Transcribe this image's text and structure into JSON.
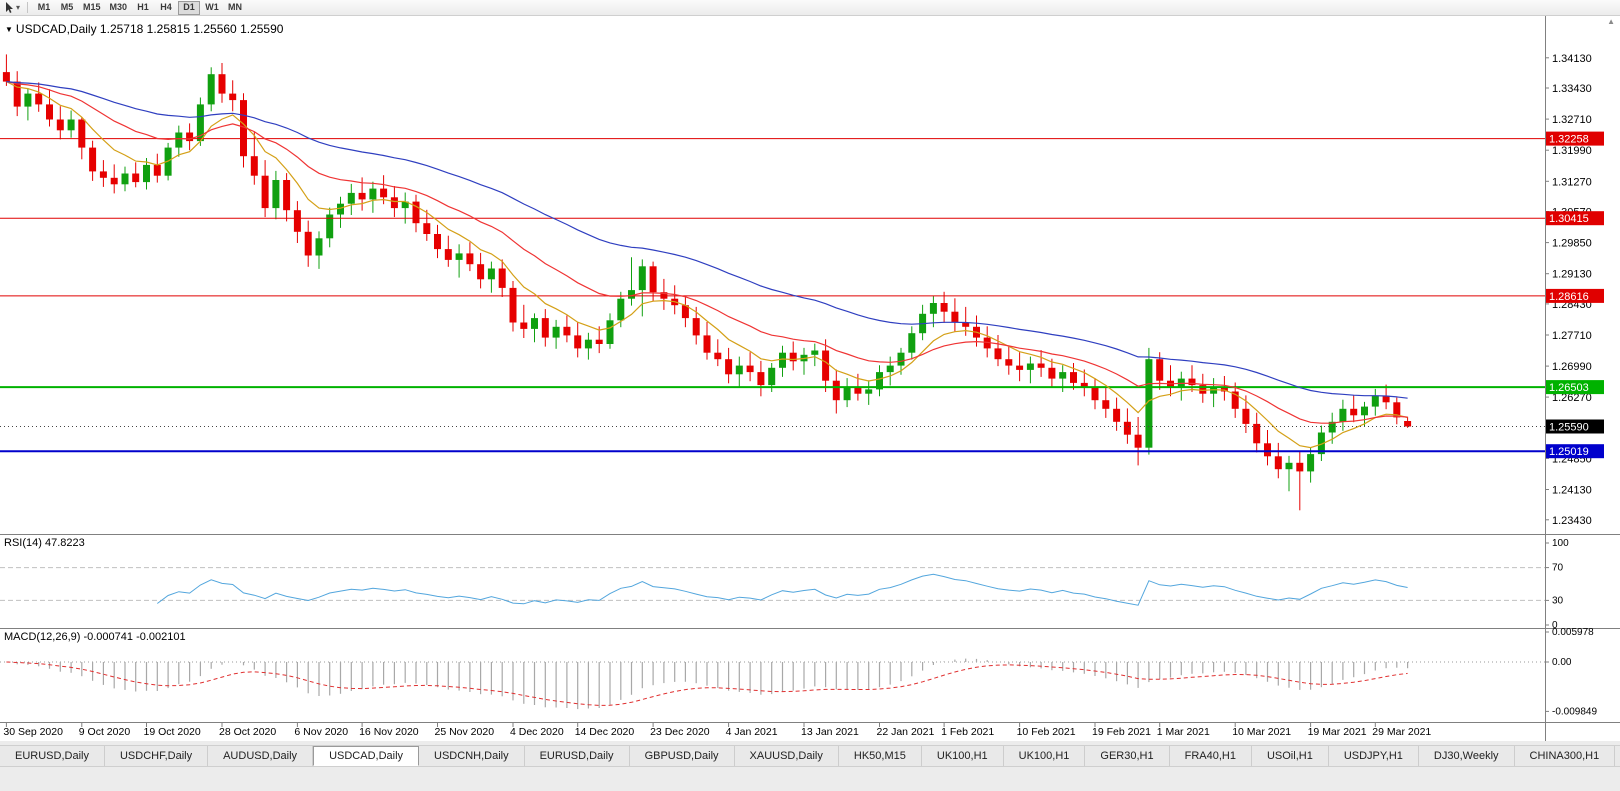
{
  "window": {
    "toolbar": {
      "cursor_tool": "pointer",
      "timeframes": [
        "M1",
        "M5",
        "M15",
        "M30",
        "H1",
        "H4",
        "D1",
        "W1",
        "MN"
      ],
      "active_timeframe": "D1"
    },
    "tabs": [
      {
        "label": "EURUSD,Daily",
        "active": false
      },
      {
        "label": "USDCHF,Daily",
        "active": false
      },
      {
        "label": "AUDUSD,Daily",
        "active": false
      },
      {
        "label": "USDCAD,Daily",
        "active": true
      },
      {
        "label": "USDCNH,Daily",
        "active": false
      },
      {
        "label": "EURUSD,Daily",
        "active": false
      },
      {
        "label": "GBPUSD,Daily",
        "active": false
      },
      {
        "label": "XAUUSD,Daily",
        "active": false
      },
      {
        "label": "HK50,M15",
        "active": false
      },
      {
        "label": "UK100,H1",
        "active": false
      },
      {
        "label": "UK100,H1",
        "active": false
      },
      {
        "label": "GER30,H1",
        "active": false
      },
      {
        "label": "FRA40,H1",
        "active": false
      },
      {
        "label": "USOil,H1",
        "active": false
      },
      {
        "label": "USDJPY,H1",
        "active": false
      },
      {
        "label": "DJ30,Weekly",
        "active": false
      },
      {
        "label": "CHINA300,H1",
        "active": false
      }
    ]
  },
  "chart": {
    "ohlc_line": "USDCAD,Daily 1.25718 1.25815 1.25560 1.25590",
    "open": "1.25718",
    "high": "1.25815",
    "low": "1.25560",
    "close": "1.25590",
    "colors": {
      "bull": "#10a010",
      "bear": "#e60000"
    }
  },
  "chart_data": {
    "type": "candlestick",
    "symbol": "USDCAD",
    "period": "Daily",
    "ylim": [
      1.231,
      1.3489
    ],
    "price_axis": [
      "1.34130",
      "1.33430",
      "1.32710",
      "1.31990",
      "1.31270",
      "1.30570",
      "1.29850",
      "1.29130",
      "1.28430",
      "1.27710",
      "1.26990",
      "1.26270",
      "1.24850",
      "1.24130",
      "1.23430"
    ],
    "current_price": {
      "price": 1.2559,
      "label": "1.25590",
      "color": "#000000"
    },
    "hlines": [
      {
        "price": 1.32258,
        "label": "1.32258",
        "color": "#e00000",
        "lw": 1
      },
      {
        "price": 1.30415,
        "label": "1.30415",
        "color": "#e00000",
        "lw": 1
      },
      {
        "price": 1.28616,
        "label": "1.28616",
        "color": "#e00000",
        "lw": 1
      },
      {
        "price": 1.26503,
        "label": "1.26503",
        "color": "#00b200",
        "lw": 2
      },
      {
        "price": 1.25019,
        "label": "1.25019",
        "color": "#0000cc",
        "lw": 2
      }
    ],
    "date_ticks": [
      {
        "i": 0,
        "label": "30 Sep 2020"
      },
      {
        "i": 7,
        "label": "9 Oct 2020"
      },
      {
        "i": 13,
        "label": "19 Oct 2020"
      },
      {
        "i": 20,
        "label": "28 Oct 2020"
      },
      {
        "i": 27,
        "label": "6 Nov 2020"
      },
      {
        "i": 33,
        "label": "16 Nov 2020"
      },
      {
        "i": 40,
        "label": "25 Nov 2020"
      },
      {
        "i": 47,
        "label": "4 Dec 2020"
      },
      {
        "i": 53,
        "label": "14 Dec 2020"
      },
      {
        "i": 60,
        "label": "23 Dec 2020"
      },
      {
        "i": 67,
        "label": "4 Jan 2021"
      },
      {
        "i": 74,
        "label": "13 Jan 2021"
      },
      {
        "i": 81,
        "label": "22 Jan 2021"
      },
      {
        "i": 87,
        "label": "1 Feb 2021"
      },
      {
        "i": 94,
        "label": "10 Feb 2021"
      },
      {
        "i": 101,
        "label": "19 Feb 2021"
      },
      {
        "i": 107,
        "label": "1 Mar 2021"
      },
      {
        "i": 114,
        "label": "10 Mar 2021"
      },
      {
        "i": 121,
        "label": "19 Mar 2021"
      },
      {
        "i": 127,
        "label": "29 Mar 2021"
      }
    ],
    "indicators": {
      "ma": [
        {
          "period": 8,
          "color": "#d4a017"
        },
        {
          "period": 20,
          "color": "#ef3434"
        },
        {
          "period": 45,
          "color": "#2f3fc0"
        }
      ],
      "rsi": {
        "label": "RSI(14)",
        "value": "47.8223",
        "display": "RSI(14) 47.8223",
        "period": 14,
        "levels": [
          100,
          70,
          30,
          0
        ],
        "color": "#53a6dd"
      },
      "macd": {
        "label": "MACD(12,26,9)",
        "main_value": "-0.000741",
        "signal_value": "-0.002101",
        "display": "MACD(12,26,9) -0.000741 -0.002101",
        "fast": 12,
        "slow": 26,
        "signal": 9,
        "axis": [
          "0.005978",
          "0.00",
          "-0.009849"
        ],
        "hist_color": "#a8a8a8",
        "signal_color": "#e03030"
      }
    },
    "candles": [
      [
        1.338,
        1.3421,
        1.3348,
        1.3358
      ],
      [
        1.3358,
        1.3382,
        1.3278,
        1.33
      ],
      [
        1.33,
        1.3341,
        1.3268,
        1.333
      ],
      [
        1.333,
        1.3356,
        1.3288,
        1.3305
      ],
      [
        1.3305,
        1.334,
        1.3254,
        1.327
      ],
      [
        1.327,
        1.3301,
        1.3224,
        1.3245
      ],
      [
        1.3245,
        1.3291,
        1.3228,
        1.327
      ],
      [
        1.327,
        1.3276,
        1.3178,
        1.3205
      ],
      [
        1.3205,
        1.3221,
        1.3128,
        1.315
      ],
      [
        1.315,
        1.3176,
        1.3114,
        1.3135
      ],
      [
        1.3135,
        1.3166,
        1.3099,
        1.312
      ],
      [
        1.312,
        1.3161,
        1.3104,
        1.3145
      ],
      [
        1.3145,
        1.3171,
        1.3113,
        1.3125
      ],
      [
        1.3125,
        1.3181,
        1.3108,
        1.3165
      ],
      [
        1.3165,
        1.3191,
        1.3124,
        1.314
      ],
      [
        1.314,
        1.3216,
        1.3129,
        1.3205
      ],
      [
        1.3205,
        1.3256,
        1.3184,
        1.324
      ],
      [
        1.324,
        1.3261,
        1.3199,
        1.322
      ],
      [
        1.322,
        1.3321,
        1.3209,
        1.3305
      ],
      [
        1.3305,
        1.3391,
        1.3289,
        1.3375
      ],
      [
        1.3375,
        1.3401,
        1.3309,
        1.333
      ],
      [
        1.333,
        1.3361,
        1.3289,
        1.3315
      ],
      [
        1.3315,
        1.3331,
        1.3159,
        1.3185
      ],
      [
        1.3185,
        1.3241,
        1.3119,
        1.314
      ],
      [
        1.314,
        1.3176,
        1.3044,
        1.3065
      ],
      [
        1.3065,
        1.3151,
        1.3039,
        1.313
      ],
      [
        1.313,
        1.3146,
        1.3034,
        1.306
      ],
      [
        1.306,
        1.3081,
        1.2984,
        1.301
      ],
      [
        1.301,
        1.3036,
        1.2929,
        1.2955
      ],
      [
        1.2955,
        1.3011,
        1.2924,
        1.2995
      ],
      [
        1.2995,
        1.3066,
        1.2974,
        1.305
      ],
      [
        1.305,
        1.3091,
        1.3019,
        1.3075
      ],
      [
        1.3075,
        1.3121,
        1.3049,
        1.31
      ],
      [
        1.31,
        1.3136,
        1.3059,
        1.3085
      ],
      [
        1.3085,
        1.3126,
        1.3054,
        1.311
      ],
      [
        1.311,
        1.3141,
        1.3074,
        1.309
      ],
      [
        1.309,
        1.3116,
        1.3044,
        1.3065
      ],
      [
        1.3065,
        1.3101,
        1.3029,
        1.308
      ],
      [
        1.308,
        1.3096,
        1.3009,
        1.303
      ],
      [
        1.303,
        1.3061,
        1.2989,
        1.3005
      ],
      [
        1.3005,
        1.3026,
        1.2949,
        1.297
      ],
      [
        1.297,
        1.3001,
        1.2929,
        1.2945
      ],
      [
        1.2945,
        1.2981,
        1.2904,
        1.296
      ],
      [
        1.296,
        1.2986,
        1.2919,
        1.2935
      ],
      [
        1.2935,
        1.2961,
        1.2879,
        1.29
      ],
      [
        1.29,
        1.2941,
        1.2869,
        1.2925
      ],
      [
        1.2925,
        1.2946,
        1.2859,
        1.288
      ],
      [
        1.288,
        1.2896,
        1.2779,
        1.28
      ],
      [
        1.28,
        1.2841,
        1.2764,
        1.2785
      ],
      [
        1.2785,
        1.2821,
        1.2754,
        1.281
      ],
      [
        1.281,
        1.2831,
        1.2744,
        1.2765
      ],
      [
        1.2765,
        1.2806,
        1.2739,
        1.279
      ],
      [
        1.279,
        1.2816,
        1.2754,
        1.277
      ],
      [
        1.277,
        1.2801,
        1.2719,
        1.274
      ],
      [
        1.274,
        1.2776,
        1.2714,
        1.276
      ],
      [
        1.276,
        1.2791,
        1.2729,
        1.275
      ],
      [
        1.275,
        1.2821,
        1.2739,
        1.2805
      ],
      [
        1.2805,
        1.2871,
        1.2789,
        1.2855
      ],
      [
        1.2855,
        1.2951,
        1.2839,
        1.2875
      ],
      [
        1.2875,
        1.2946,
        1.2814,
        1.293
      ],
      [
        1.293,
        1.2941,
        1.2849,
        1.287
      ],
      [
        1.287,
        1.2901,
        1.2829,
        1.2855
      ],
      [
        1.2855,
        1.2886,
        1.2819,
        1.284
      ],
      [
        1.284,
        1.2861,
        1.2789,
        1.281
      ],
      [
        1.281,
        1.2836,
        1.2749,
        1.277
      ],
      [
        1.277,
        1.2801,
        1.2714,
        1.273
      ],
      [
        1.273,
        1.2761,
        1.2699,
        1.2715
      ],
      [
        1.2715,
        1.2741,
        1.2659,
        1.268
      ],
      [
        1.268,
        1.2721,
        1.2649,
        1.27
      ],
      [
        1.27,
        1.2731,
        1.2664,
        1.2685
      ],
      [
        1.2685,
        1.2711,
        1.2629,
        1.2655
      ],
      [
        1.2655,
        1.2706,
        1.2639,
        1.2695
      ],
      [
        1.2695,
        1.2746,
        1.2674,
        1.273
      ],
      [
        1.273,
        1.2756,
        1.2689,
        1.271
      ],
      [
        1.271,
        1.2741,
        1.2679,
        1.2725
      ],
      [
        1.2725,
        1.2751,
        1.2699,
        1.2735
      ],
      [
        1.2735,
        1.2761,
        1.2639,
        1.2665
      ],
      [
        1.2665,
        1.2691,
        1.2589,
        1.262
      ],
      [
        1.262,
        1.2671,
        1.2604,
        1.265
      ],
      [
        1.265,
        1.2681,
        1.2619,
        1.2635
      ],
      [
        1.2635,
        1.2666,
        1.2609,
        1.2645
      ],
      [
        1.2645,
        1.2701,
        1.2629,
        1.2685
      ],
      [
        1.2685,
        1.2721,
        1.2654,
        1.27
      ],
      [
        1.27,
        1.2741,
        1.2679,
        1.273
      ],
      [
        1.273,
        1.2791,
        1.2714,
        1.2775
      ],
      [
        1.2775,
        1.2841,
        1.2759,
        1.282
      ],
      [
        1.282,
        1.2861,
        1.2789,
        1.2845
      ],
      [
        1.2845,
        1.2871,
        1.2799,
        1.2825
      ],
      [
        1.2825,
        1.2856,
        1.2779,
        1.28
      ],
      [
        1.28,
        1.2836,
        1.2769,
        1.279
      ],
      [
        1.279,
        1.2816,
        1.2744,
        1.2765
      ],
      [
        1.2765,
        1.2791,
        1.2719,
        1.274
      ],
      [
        1.274,
        1.2771,
        1.2699,
        1.2715
      ],
      [
        1.2715,
        1.2746,
        1.2679,
        1.27
      ],
      [
        1.27,
        1.2731,
        1.2664,
        1.269
      ],
      [
        1.269,
        1.2721,
        1.2659,
        1.2705
      ],
      [
        1.2705,
        1.2736,
        1.2674,
        1.2695
      ],
      [
        1.2695,
        1.2716,
        1.2649,
        1.267
      ],
      [
        1.267,
        1.2701,
        1.2639,
        1.2685
      ],
      [
        1.2685,
        1.2706,
        1.2644,
        1.266
      ],
      [
        1.266,
        1.2691,
        1.2629,
        1.265
      ],
      [
        1.265,
        1.2671,
        1.2599,
        1.262
      ],
      [
        1.262,
        1.2651,
        1.2579,
        1.26
      ],
      [
        1.26,
        1.2626,
        1.2549,
        1.257
      ],
      [
        1.257,
        1.2601,
        1.2519,
        1.254
      ],
      [
        1.254,
        1.2581,
        1.2469,
        1.251
      ],
      [
        1.251,
        1.2741,
        1.2494,
        1.2715
      ],
      [
        1.2715,
        1.2731,
        1.2644,
        1.2665
      ],
      [
        1.2665,
        1.2701,
        1.2629,
        1.265
      ],
      [
        1.265,
        1.2686,
        1.2619,
        1.267
      ],
      [
        1.267,
        1.2701,
        1.2639,
        1.2655
      ],
      [
        1.2655,
        1.2681,
        1.2614,
        1.2635
      ],
      [
        1.2635,
        1.2671,
        1.2604,
        1.265
      ],
      [
        1.265,
        1.2676,
        1.2619,
        1.264
      ],
      [
        1.264,
        1.2661,
        1.2579,
        1.26
      ],
      [
        1.26,
        1.2631,
        1.2544,
        1.2565
      ],
      [
        1.2565,
        1.2591,
        1.2499,
        1.252
      ],
      [
        1.252,
        1.2551,
        1.2469,
        1.249
      ],
      [
        1.249,
        1.2521,
        1.2439,
        1.246
      ],
      [
        1.246,
        1.2491,
        1.2409,
        1.2475
      ],
      [
        1.2475,
        1.2501,
        1.2365,
        1.2455
      ],
      [
        1.2455,
        1.2511,
        1.2429,
        1.2495
      ],
      [
        1.2495,
        1.2561,
        1.2479,
        1.2545
      ],
      [
        1.2545,
        1.2591,
        1.2519,
        1.257
      ],
      [
        1.257,
        1.2621,
        1.2549,
        1.26
      ],
      [
        1.26,
        1.2631,
        1.2569,
        1.2585
      ],
      [
        1.2585,
        1.2616,
        1.2559,
        1.2605
      ],
      [
        1.2605,
        1.2646,
        1.2584,
        1.263
      ],
      [
        1.263,
        1.2656,
        1.2599,
        1.2615
      ],
      [
        1.2615,
        1.2626,
        1.2564,
        1.258
      ],
      [
        1.25718,
        1.25815,
        1.2556,
        1.2559
      ]
    ]
  }
}
